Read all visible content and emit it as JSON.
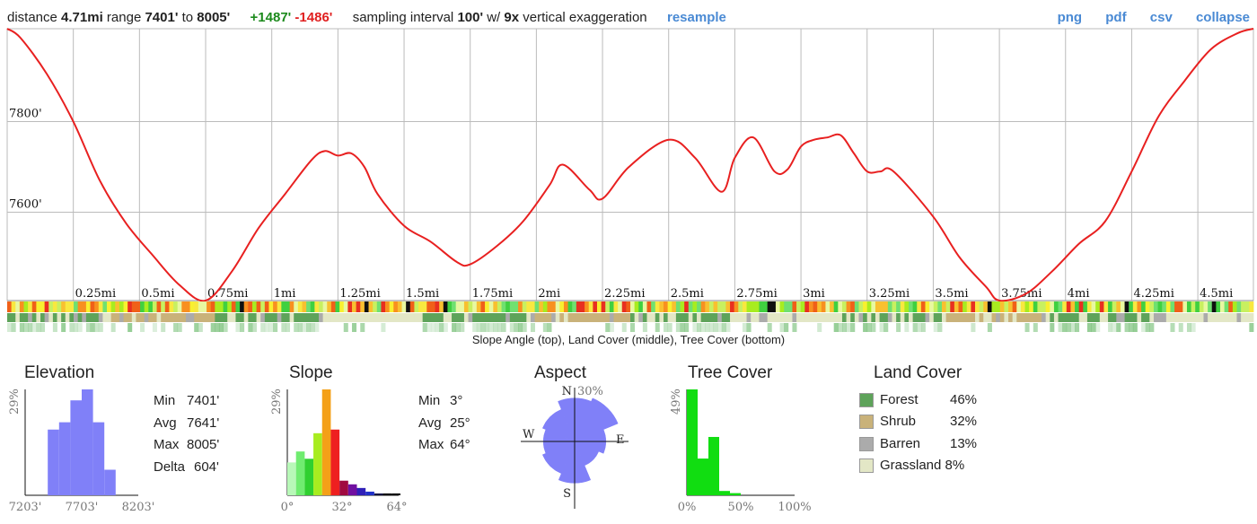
{
  "header": {
    "distance_label": "distance",
    "distance": "4.71mi",
    "range_label": "range",
    "range_min": "7401'",
    "range_to": "to",
    "range_max": "8005'",
    "gain": "+1487'",
    "loss": "-1486'",
    "sampling_label": "sampling interval",
    "interval": "100'",
    "with_label": "w/",
    "exaggeration": "9x",
    "exaggeration_label": "vertical exaggeration",
    "resample": "resample",
    "links": [
      "png",
      "pdf",
      "csv",
      "collapse"
    ]
  },
  "colors": {
    "profile_line": "#e82020",
    "link": "#4a8ad4",
    "gain": "#1c8a1c",
    "loss": "#e02020",
    "forest": "#5ea35a",
    "shrub": "#c9b27a",
    "barren": "#ababab",
    "grassland": "#e3e7c6",
    "elev_hist": "#8080f8",
    "aspect_fill": "#8080f8",
    "tree_hist": "#11dd11"
  },
  "strip_caption": "Slope Angle (top), Land Cover (middle), Tree Cover (bottom)",
  "chart_data": [
    {
      "type": "line",
      "name": "elevation_profile",
      "x_unit": "mi",
      "y_unit": "ft",
      "xlim": [
        0,
        4.71
      ],
      "ylim": [
        7405,
        8005
      ],
      "y_ticks": [
        7600,
        7800
      ],
      "y_tick_labels": [
        "7600'",
        "7800'"
      ],
      "x_ticks": [
        0.25,
        0.5,
        0.75,
        1.0,
        1.25,
        1.5,
        1.75,
        2.0,
        2.25,
        2.5,
        2.75,
        3.0,
        3.25,
        3.5,
        3.75,
        4.0,
        4.25,
        4.5
      ],
      "x_tick_labels": [
        "0.25mi",
        "0.5mi",
        "0.75mi",
        "1mi",
        "1.25mi",
        "1.5mi",
        "1.75mi",
        "2mi",
        "2.25mi",
        "2.5mi",
        "2.75mi",
        "3mi",
        "3.25mi",
        "3.5mi",
        "3.75mi",
        "4mi",
        "4.25mi",
        "4.5mi"
      ],
      "grid": true,
      "x": [
        0,
        0.05,
        0.15,
        0.25,
        0.35,
        0.45,
        0.55,
        0.65,
        0.75,
        0.85,
        0.95,
        1.05,
        1.15,
        1.2,
        1.25,
        1.3,
        1.35,
        1.4,
        1.5,
        1.6,
        1.7,
        1.75,
        1.85,
        1.95,
        2.05,
        2.1,
        2.2,
        2.25,
        2.35,
        2.5,
        2.6,
        2.7,
        2.75,
        2.82,
        2.9,
        2.95,
        3.0,
        3.05,
        3.1,
        3.15,
        3.2,
        3.25,
        3.3,
        3.35,
        3.5,
        3.6,
        3.7,
        3.75,
        3.85,
        3.95,
        4.05,
        4.15,
        4.25,
        4.35,
        4.45,
        4.55,
        4.65,
        4.71
      ],
      "y": [
        8005,
        7985,
        7905,
        7800,
        7670,
        7575,
        7505,
        7440,
        7405,
        7470,
        7565,
        7640,
        7715,
        7735,
        7725,
        7730,
        7700,
        7640,
        7570,
        7535,
        7490,
        7485,
        7525,
        7580,
        7660,
        7705,
        7650,
        7630,
        7700,
        7760,
        7720,
        7645,
        7720,
        7765,
        7690,
        7695,
        7745,
        7760,
        7765,
        7770,
        7730,
        7690,
        7690,
        7690,
        7590,
        7500,
        7435,
        7405,
        7420,
        7470,
        7530,
        7580,
        7690,
        7810,
        7890,
        7960,
        7995,
        8005
      ]
    },
    {
      "type": "bar",
      "name": "elevation_histogram",
      "title": "Elevation",
      "ylabel": "29%",
      "x_tick_labels": [
        "7203'",
        "7703'",
        "8203'"
      ],
      "xlim": [
        7203,
        8203
      ],
      "bin_width": 100,
      "x": [
        7403,
        7503,
        7603,
        7703,
        7803,
        7903
      ],
      "values": [
        18,
        20,
        26,
        29,
        20,
        7
      ],
      "ylim": [
        0,
        29
      ],
      "stats": [
        [
          "Min",
          "7401'"
        ],
        [
          "Avg",
          "7641'"
        ],
        [
          "Max",
          "8005'"
        ],
        [
          "Delta",
          "604'"
        ]
      ]
    },
    {
      "type": "bar",
      "name": "slope_histogram",
      "title": "Slope",
      "ylabel": "29%",
      "x_tick_labels": [
        "0°",
        "32°",
        "64°"
      ],
      "xlim": [
        0,
        64
      ],
      "bin_width": 5,
      "x": [
        0,
        5,
        10,
        15,
        20,
        25,
        30,
        35,
        40,
        45,
        50,
        55,
        60
      ],
      "values": [
        9,
        12,
        10,
        17,
        29,
        18,
        4,
        3,
        2,
        1,
        0.5,
        0.5,
        0.5
      ],
      "bar_colors": [
        "#b8f8b8",
        "#70ec70",
        "#30d030",
        "#a8ec20",
        "#f4a018",
        "#ee2020",
        "#a00a40",
        "#7010a0",
        "#3020b8",
        "#2030c8",
        "#101040",
        "#000000",
        "#000000"
      ],
      "ylim": [
        0,
        29
      ],
      "stats": [
        [
          "Min",
          "3°"
        ],
        [
          "Avg",
          "25°"
        ],
        [
          "Max",
          "64°"
        ]
      ]
    },
    {
      "type": "pie",
      "name": "aspect_rose",
      "title": "Aspect",
      "max_label": "30%",
      "compass_labels": [
        "N",
        "E",
        "S",
        "W"
      ],
      "directions": [
        "N",
        "NE",
        "E",
        "SE",
        "S",
        "SW",
        "W",
        "NW"
      ],
      "values": [
        25,
        27,
        18,
        15,
        24,
        20,
        18,
        20
      ]
    },
    {
      "type": "bar",
      "name": "tree_cover_histogram",
      "title": "Tree Cover",
      "ylabel": "49%",
      "x_tick_labels": [
        "0%",
        "50%",
        "100%"
      ],
      "xlim": [
        0,
        100
      ],
      "bin_width": 10,
      "x": [
        0,
        10,
        20,
        30,
        40
      ],
      "values": [
        49,
        17,
        27,
        2,
        1
      ],
      "ylim": [
        0,
        49
      ]
    },
    {
      "type": "table",
      "name": "land_cover",
      "title": "Land Cover",
      "rows": [
        {
          "label": "Forest",
          "value": "46%",
          "color": "#5ea35a"
        },
        {
          "label": "Shrub",
          "value": "32%",
          "color": "#c9b27a"
        },
        {
          "label": "Barren",
          "value": "13%",
          "color": "#ababab"
        },
        {
          "label": "Grassland",
          "value": "8%",
          "color": "#e3e7c6"
        }
      ]
    }
  ]
}
